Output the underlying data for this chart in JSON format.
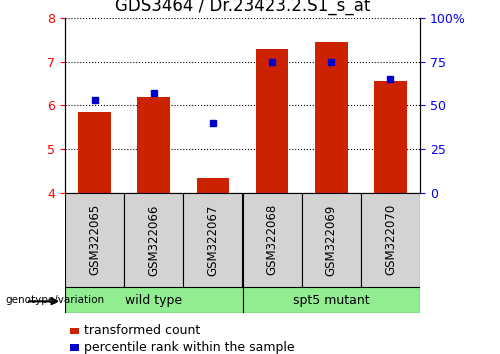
{
  "title": "GDS3464 / Dr.23423.2.S1_s_at",
  "samples": [
    "GSM322065",
    "GSM322066",
    "GSM322067",
    "GSM322068",
    "GSM322069",
    "GSM322070"
  ],
  "bar_values": [
    5.85,
    6.2,
    4.35,
    7.28,
    7.45,
    6.55
  ],
  "percentile_values": [
    53,
    57,
    40,
    75,
    75,
    65
  ],
  "bar_color": "#cc2200",
  "dot_color": "#0000cc",
  "ylim_left": [
    4,
    8
  ],
  "ylim_right": [
    0,
    100
  ],
  "yticks_left": [
    4,
    5,
    6,
    7,
    8
  ],
  "yticks_right": [
    0,
    25,
    50,
    75,
    100
  ],
  "ytick_labels_right": [
    "0",
    "25",
    "50",
    "75",
    "100%"
  ],
  "group_labels": [
    "wild type",
    "spt5 mutant"
  ],
  "group_color": "#90ee90",
  "sample_box_color": "#d3d3d3",
  "group_label_text": "genotype/variation",
  "legend_bar_label": "transformed count",
  "legend_dot_label": "percentile rank within the sample",
  "bar_width": 0.55,
  "background_color": "#ffffff",
  "grid_color": "#000000",
  "title_fontsize": 12,
  "axis_fontsize": 9,
  "label_fontsize": 9,
  "tick_label_fontsize": 8.5
}
